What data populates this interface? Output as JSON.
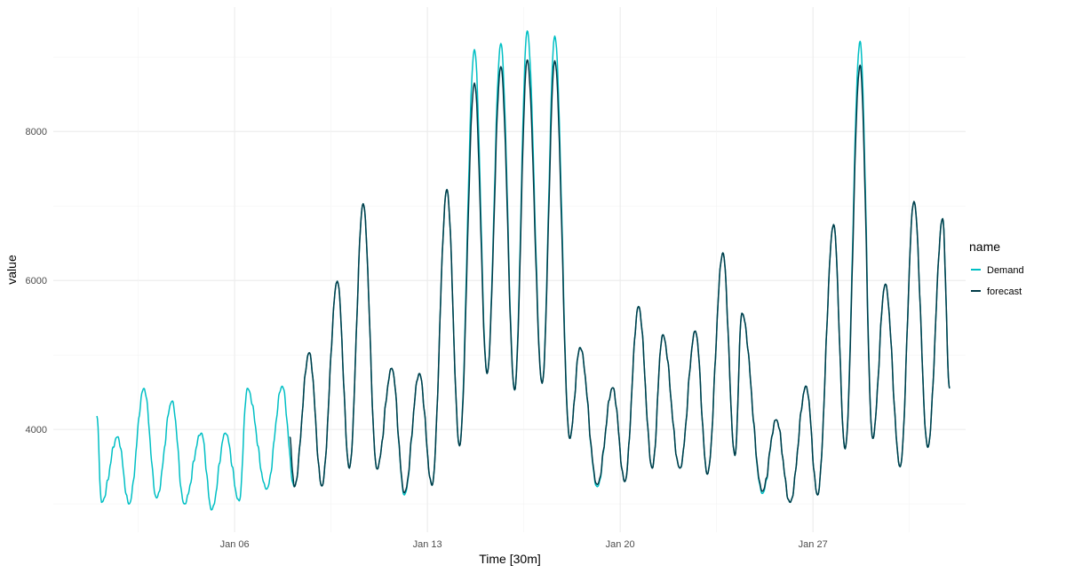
{
  "chart_data": {
    "type": "line",
    "xlabel": "Time [30m]",
    "ylabel": "value",
    "xlim": [
      "Dec 30 10:00",
      "Feb 01 13:00"
    ],
    "ylim": [
      2620,
      9670
    ],
    "grid": true,
    "x_ticks": [
      {
        "label": "Jan 06",
        "at": "Jan 06 00:00"
      },
      {
        "label": "Jan 13",
        "at": "Jan 13 00:00"
      },
      {
        "label": "Jan 20",
        "at": "Jan 20 00:00"
      },
      {
        "label": "Jan 27",
        "at": "Jan 27 00:00"
      }
    ],
    "y_ticks": [
      4000,
      6000,
      8000
    ],
    "legend": {
      "title": "name",
      "position": "right"
    },
    "series": [
      {
        "name": "Demand",
        "color": "#00BFC4",
        "points": [
          [
            "Jan 01 00:00",
            4180
          ],
          [
            "Jan 01 04:00",
            3020
          ],
          [
            "Jan 01 18:00",
            3900
          ],
          [
            "Jan 02 04:00",
            3000
          ],
          [
            "Jan 02 17:00",
            4550
          ],
          [
            "Jan 03 04:00",
            3080
          ],
          [
            "Jan 03 17:30",
            4380
          ],
          [
            "Jan 04 04:00",
            3000
          ],
          [
            "Jan 04 19:00",
            3950
          ],
          [
            "Jan 05 04:00",
            2920
          ],
          [
            "Jan 05 16:00",
            3950
          ],
          [
            "Jan 06 04:00",
            3040
          ],
          [
            "Jan 06 11:00",
            4550
          ],
          [
            "Jan 07 04:00",
            3200
          ],
          [
            "Jan 07 17:30",
            4580
          ],
          [
            "Jan 08 04:00",
            3230
          ],
          [
            "Jan 08 17:00",
            5030
          ],
          [
            "Jan 09 04:00",
            3240
          ],
          [
            "Jan 09 17:30",
            5990
          ],
          [
            "Jan 10 04:00",
            3480
          ],
          [
            "Jan 10 16:00",
            7030
          ],
          [
            "Jan 11 04:00",
            3470
          ],
          [
            "Jan 11 17:00",
            4820
          ],
          [
            "Jan 12 04:00",
            3120
          ],
          [
            "Jan 12 17:00",
            4750
          ],
          [
            "Jan 13 04:00",
            3250
          ],
          [
            "Jan 13 17:00",
            7220
          ],
          [
            "Jan 14 04:00",
            3780
          ],
          [
            "Jan 14 17:00",
            9100
          ],
          [
            "Jan 15 04:00",
            4750
          ],
          [
            "Jan 15 16:00",
            9180
          ],
          [
            "Jan 16 04:00",
            4530
          ],
          [
            "Jan 16 15:00",
            9350
          ],
          [
            "Jan 17 04:00",
            4620
          ],
          [
            "Jan 17 15:00",
            9280
          ],
          [
            "Jan 18 04:00",
            3880
          ],
          [
            "Jan 18 13:00",
            5100
          ],
          [
            "Jan 19 04:00",
            3230
          ],
          [
            "Jan 19 17:30",
            4560
          ],
          [
            "Jan 20 04:00",
            3300
          ],
          [
            "Jan 20 16:00",
            5650
          ],
          [
            "Jan 21 04:00",
            3480
          ],
          [
            "Jan 21 13:00",
            5270
          ],
          [
            "Jan 22 04:00",
            3480
          ],
          [
            "Jan 22 17:30",
            5320
          ],
          [
            "Jan 23 04:00",
            3400
          ],
          [
            "Jan 23 17:30",
            6370
          ],
          [
            "Jan 24 04:00",
            3650
          ],
          [
            "Jan 24 10:00",
            5560
          ],
          [
            "Jan 25 04:00",
            3140
          ],
          [
            "Jan 25 16:00",
            4130
          ],
          [
            "Jan 26 04:00",
            3020
          ],
          [
            "Jan 26 18:00",
            4580
          ],
          [
            "Jan 27 04:00",
            3120
          ],
          [
            "Jan 27 18:00",
            6750
          ],
          [
            "Jan 28 04:00",
            3740
          ],
          [
            "Jan 28 17:00",
            9210
          ],
          [
            "Jan 29 04:00",
            3880
          ],
          [
            "Jan 29 15:00",
            5950
          ],
          [
            "Jan 30 04:00",
            3500
          ],
          [
            "Jan 30 16:00",
            7060
          ],
          [
            "Jan 31 04:00",
            3760
          ],
          [
            "Jan 31 17:00",
            6830
          ],
          [
            "Jan 31 23:00",
            4550
          ]
        ]
      },
      {
        "name": "forecast",
        "color": "#003A47",
        "points": [
          [
            "Jan 08 00:00",
            3900
          ],
          [
            "Jan 08 04:00",
            3230
          ],
          [
            "Jan 08 17:00",
            5030
          ],
          [
            "Jan 09 04:00",
            3240
          ],
          [
            "Jan 09 17:30",
            5990
          ],
          [
            "Jan 10 04:00",
            3480
          ],
          [
            "Jan 10 16:00",
            7030
          ],
          [
            "Jan 11 04:00",
            3470
          ],
          [
            "Jan 11 17:00",
            4820
          ],
          [
            "Jan 12 04:00",
            3150
          ],
          [
            "Jan 12 17:00",
            4750
          ],
          [
            "Jan 13 04:00",
            3250
          ],
          [
            "Jan 13 17:00",
            7220
          ],
          [
            "Jan 14 04:00",
            3780
          ],
          [
            "Jan 14 17:00",
            8650
          ],
          [
            "Jan 15 04:00",
            4750
          ],
          [
            "Jan 15 16:00",
            8870
          ],
          [
            "Jan 16 04:00",
            4530
          ],
          [
            "Jan 16 15:00",
            8960
          ],
          [
            "Jan 17 04:00",
            4620
          ],
          [
            "Jan 17 15:00",
            8950
          ],
          [
            "Jan 18 04:00",
            3880
          ],
          [
            "Jan 18 13:00",
            5100
          ],
          [
            "Jan 19 04:00",
            3260
          ],
          [
            "Jan 19 17:30",
            4560
          ],
          [
            "Jan 20 04:00",
            3300
          ],
          [
            "Jan 20 16:00",
            5650
          ],
          [
            "Jan 21 04:00",
            3480
          ],
          [
            "Jan 21 13:00",
            5270
          ],
          [
            "Jan 22 04:00",
            3480
          ],
          [
            "Jan 22 17:30",
            5320
          ],
          [
            "Jan 23 04:00",
            3400
          ],
          [
            "Jan 23 17:30",
            6370
          ],
          [
            "Jan 24 04:00",
            3650
          ],
          [
            "Jan 24 10:00",
            5560
          ],
          [
            "Jan 25 04:00",
            3170
          ],
          [
            "Jan 25 16:00",
            4130
          ],
          [
            "Jan 26 04:00",
            3020
          ],
          [
            "Jan 26 18:00",
            4580
          ],
          [
            "Jan 27 04:00",
            3120
          ],
          [
            "Jan 27 18:00",
            6750
          ],
          [
            "Jan 28 04:00",
            3740
          ],
          [
            "Jan 28 17:00",
            8890
          ],
          [
            "Jan 29 04:00",
            3880
          ],
          [
            "Jan 29 15:00",
            5950
          ],
          [
            "Jan 30 04:00",
            3500
          ],
          [
            "Jan 30 16:00",
            7060
          ],
          [
            "Jan 31 04:00",
            3760
          ],
          [
            "Jan 31 17:00",
            6830
          ],
          [
            "Jan 31 23:00",
            4550
          ]
        ]
      }
    ]
  }
}
